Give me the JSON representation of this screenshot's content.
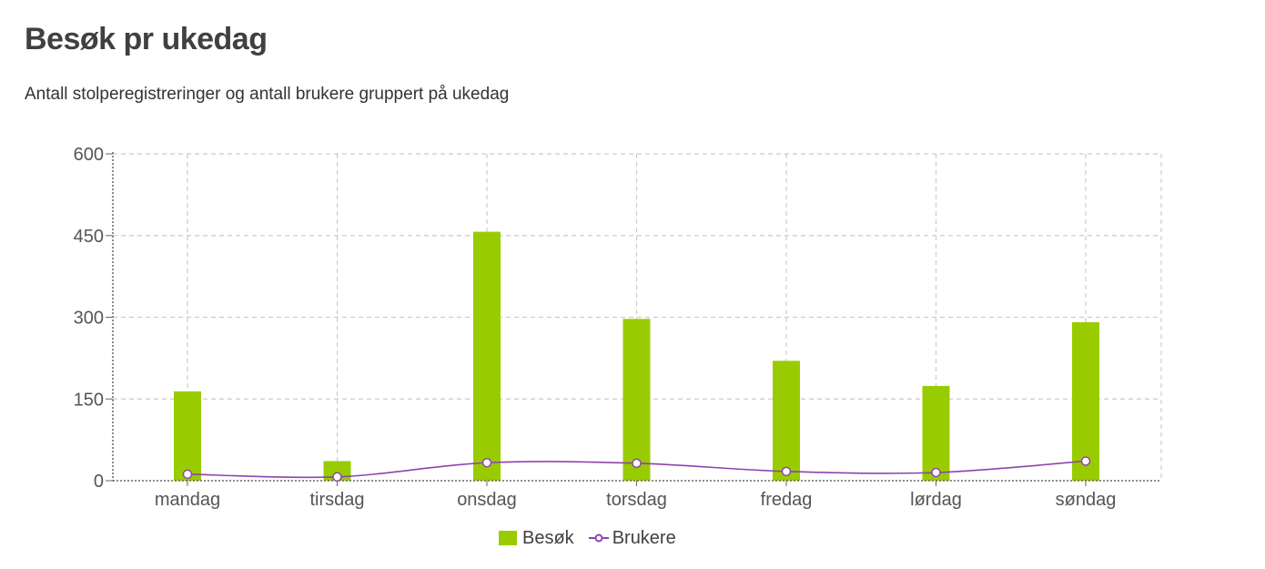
{
  "header": {
    "title": "Besøk pr ukedag",
    "subtitle": "Antall stolperegistreringer og antall brukere gruppert på ukedag"
  },
  "colors": {
    "bar": "#99cc00",
    "line": "#8e44ad",
    "grid": "#cccccc",
    "axis": "#666666",
    "text": "#555555"
  },
  "chart_data": {
    "type": "bar",
    "categories": [
      "mandag",
      "tirsdag",
      "onsdag",
      "torsdag",
      "fredag",
      "lørdag",
      "søndag"
    ],
    "series": [
      {
        "name": "Besøk",
        "type": "bar",
        "values": [
          164,
          36,
          457,
          297,
          220,
          174,
          291
        ]
      },
      {
        "name": "Brukere",
        "type": "line",
        "values": [
          12,
          7,
          33,
          32,
          17,
          15,
          36
        ]
      }
    ],
    "ylim": [
      0,
      600
    ],
    "yticks": [
      0,
      150,
      300,
      450,
      600
    ],
    "grid": true,
    "legend_position": "bottom-center"
  }
}
